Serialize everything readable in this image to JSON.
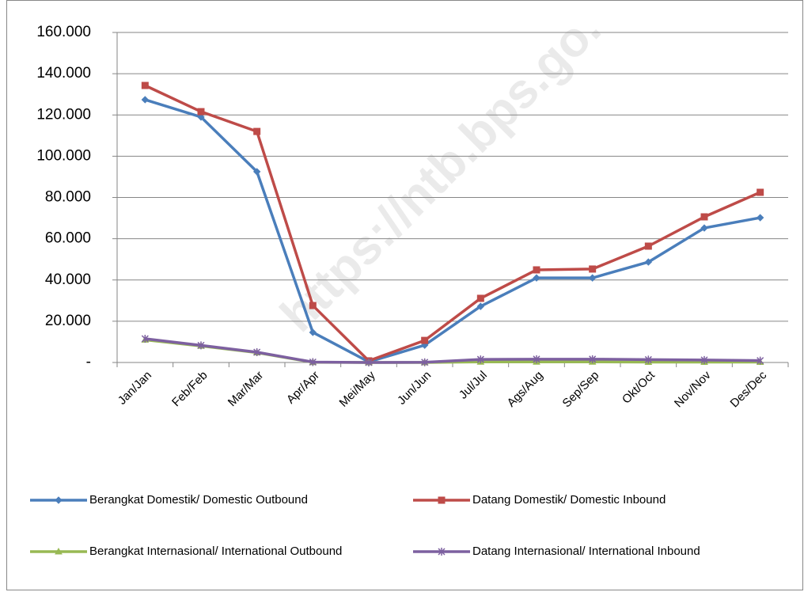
{
  "chart_data": {
    "type": "line",
    "watermark": "https://ntb.bps.go.",
    "categories": [
      "Jan/Jan",
      "Feb/Feb",
      "Mar/Mar",
      "Apr/Apr",
      "Mei/May",
      "Jun/Jun",
      "Jul/Jul",
      "Ags/Aug",
      "Sep/Sep",
      "Okt/Oct",
      "Nov/Nov",
      "Des/Dec"
    ],
    "series": [
      {
        "name": "Berangkat Domestik/ Domestic Outbound",
        "color": "#4a7ebb",
        "marker": "diamond",
        "values": [
          127400,
          119000,
          92500,
          14600,
          300,
          8400,
          27200,
          41000,
          41000,
          48700,
          65200,
          70200
        ]
      },
      {
        "name": "Datang Domestik/ Domestic Inbound",
        "color": "#be4b48",
        "marker": "square",
        "values": [
          134300,
          121600,
          112000,
          27600,
          800,
          10700,
          31100,
          44900,
          45300,
          56400,
          70600,
          82500
        ]
      },
      {
        "name": "Berangkat Internasional/ International Outbound",
        "color": "#98b954",
        "marker": "triangle",
        "values": [
          11000,
          8000,
          4800,
          100,
          0,
          0,
          300,
          300,
          300,
          200,
          200,
          200
        ]
      },
      {
        "name": "Datang Internasional/ International Inbound",
        "color": "#7d60a0",
        "marker": "star",
        "values": [
          11500,
          8300,
          5000,
          200,
          0,
          100,
          1500,
          1600,
          1600,
          1400,
          1200,
          900
        ]
      }
    ],
    "ylim": [
      0,
      160000
    ],
    "yticks": [
      {
        "value": 0,
        "label": "-"
      },
      {
        "value": 20000,
        "label": "20.000"
      },
      {
        "value": 40000,
        "label": "40.000"
      },
      {
        "value": 60000,
        "label": "60.000"
      },
      {
        "value": 80000,
        "label": "80.000"
      },
      {
        "value": 100000,
        "label": "100.000"
      },
      {
        "value": 120000,
        "label": "120.000"
      },
      {
        "value": 140000,
        "label": "140.000"
      },
      {
        "value": 160000,
        "label": "160.000"
      }
    ],
    "grid": true,
    "legend": "bottom"
  }
}
